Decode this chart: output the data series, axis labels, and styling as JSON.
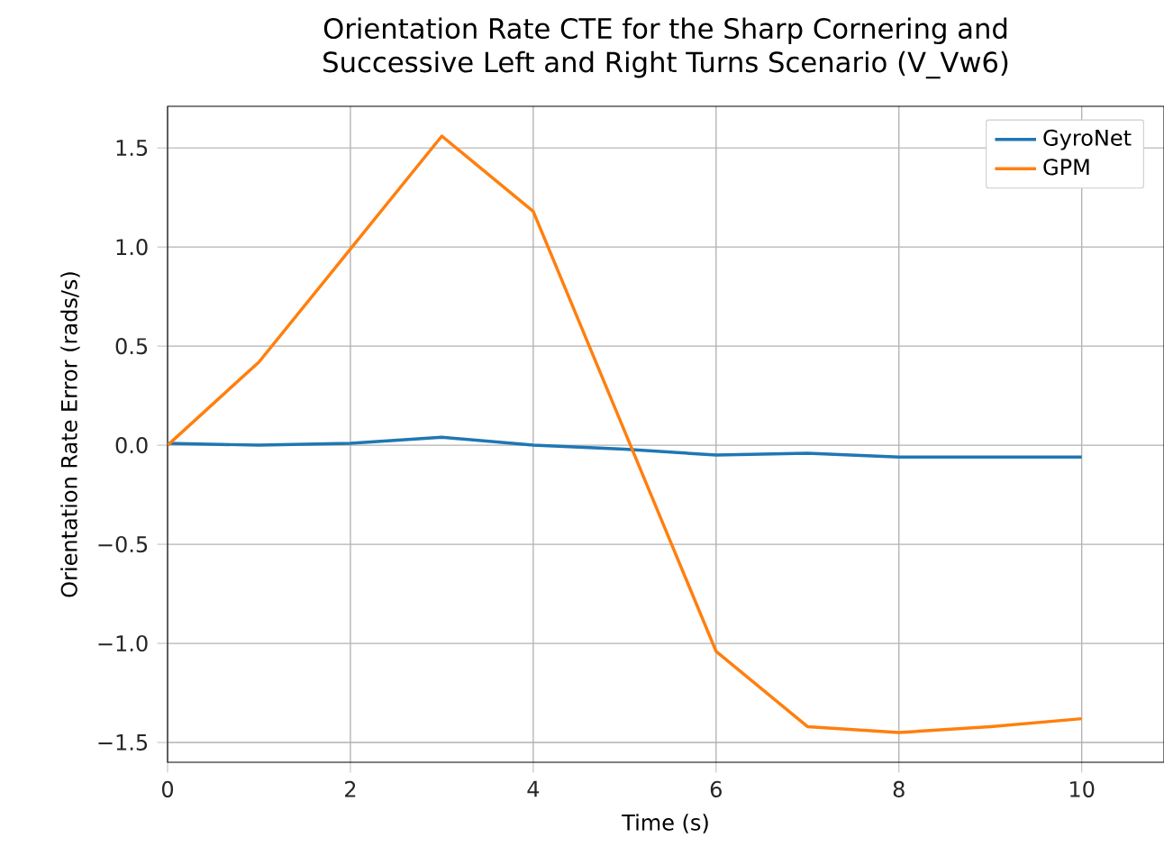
{
  "chart_data": {
    "type": "line",
    "title": "Orientation Rate CTE for the Sharp Cornering and\nSuccessive Left and Right Turns Scenario (V_Vw6)",
    "xlabel": "Time (s)",
    "ylabel": "Orientation Rate Error (rads/s)",
    "x": [
      0,
      1,
      2,
      3,
      4,
      5,
      6,
      7,
      8,
      9,
      10
    ],
    "series": [
      {
        "name": "GyroNet",
        "color": "#1f77b4",
        "values": [
          0.01,
          0.0,
          0.01,
          0.04,
          0.0,
          -0.02,
          -0.05,
          -0.04,
          -0.06,
          -0.06,
          -0.06
        ]
      },
      {
        "name": "GPM",
        "color": "#ff7f0e",
        "values": [
          0.0,
          0.42,
          0.99,
          1.56,
          1.18,
          0.07,
          -1.04,
          -1.42,
          -1.45,
          -1.42,
          -1.38
        ]
      }
    ],
    "xlim": [
      0,
      10.9
    ],
    "ylim": [
      -1.6,
      1.71
    ],
    "xticks": [
      0,
      2,
      4,
      6,
      8,
      10
    ],
    "yticks": [
      {
        "value": -1.5,
        "label": "−1.5"
      },
      {
        "value": -1.0,
        "label": "−1.0"
      },
      {
        "value": -0.5,
        "label": "−0.5"
      },
      {
        "value": 0.0,
        "label": "0.0"
      },
      {
        "value": 0.5,
        "label": "0.5"
      },
      {
        "value": 1.0,
        "label": "1.0"
      },
      {
        "value": 1.5,
        "label": "1.5"
      }
    ],
    "grid": true,
    "legend": "top right",
    "marker": "none",
    "line_style": "solid"
  }
}
